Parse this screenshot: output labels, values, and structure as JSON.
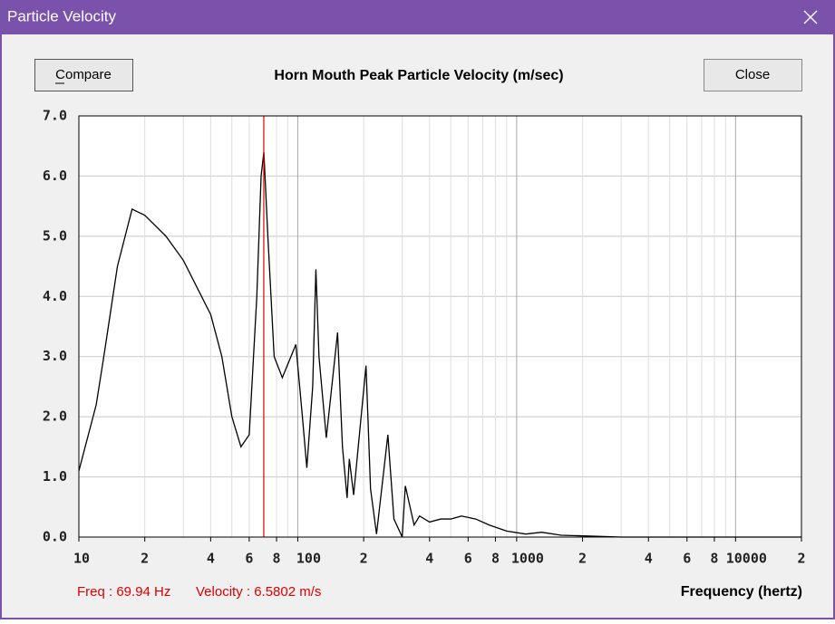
{
  "window": {
    "title": "Particle Velocity",
    "buttons": {
      "compare": "Compare",
      "close": "Close"
    }
  },
  "chart_data": {
    "type": "line",
    "title": "Horn Mouth Peak Particle Velocity (m/sec)",
    "x_label": "Frequency (hertz)",
    "xscale": "log",
    "grid": true,
    "xlim": [
      10,
      20000
    ],
    "ylim": [
      0,
      7
    ],
    "xticks": [
      10,
      {
        "value": 20,
        "label": "2"
      },
      {
        "value": 40,
        "label": "4"
      },
      {
        "value": 60,
        "label": "6"
      },
      {
        "value": 80,
        "label": "8"
      },
      100,
      {
        "value": 200,
        "label": "2"
      },
      {
        "value": 400,
        "label": "4"
      },
      {
        "value": 600,
        "label": "6"
      },
      {
        "value": 800,
        "label": "8"
      },
      1000,
      {
        "value": 2000,
        "label": "2"
      },
      {
        "value": 4000,
        "label": "4"
      },
      {
        "value": 6000,
        "label": "6"
      },
      {
        "value": 8000,
        "label": "8"
      },
      10000,
      {
        "value": 20000,
        "label": "2"
      }
    ],
    "x_minor_ticks": [
      30,
      50,
      70,
      90,
      300,
      500,
      700,
      900,
      3000,
      5000,
      7000,
      9000
    ],
    "yticks": [
      {
        "value": 0,
        "label": "0.0"
      },
      {
        "value": 1,
        "label": "1.0"
      },
      {
        "value": 2,
        "label": "2.0"
      },
      {
        "value": 3,
        "label": "3.0"
      },
      {
        "value": 4,
        "label": "4.0"
      },
      {
        "value": 5,
        "label": "5.0"
      },
      {
        "value": 6,
        "label": "6.0"
      },
      {
        "value": 7,
        "label": "7.0"
      }
    ],
    "x": [
      10,
      12,
      13,
      15,
      17.5,
      20,
      25,
      30,
      40,
      45,
      50,
      55,
      60,
      65,
      68,
      70,
      73,
      78,
      85,
      98,
      105,
      110,
      117,
      121,
      125,
      135,
      152,
      160,
      168,
      172,
      180,
      205,
      215,
      229,
      258,
      275,
      300,
      310,
      340,
      360,
      400,
      450,
      500,
      560,
      650,
      750,
      900,
      1100,
      1300,
      1600,
      2000,
      2500,
      3000,
      5000,
      20000
    ],
    "series": [
      {
        "color": "#000000",
        "values": [
          1.1,
          2.2,
          3.0,
          4.5,
          5.45,
          5.35,
          5.0,
          4.6,
          3.7,
          3.0,
          2.0,
          1.5,
          1.7,
          4.0,
          6.0,
          6.4,
          5.0,
          3.0,
          2.65,
          3.2,
          2.0,
          1.15,
          2.5,
          4.45,
          3.0,
          1.65,
          3.4,
          1.5,
          0.65,
          1.3,
          0.7,
          2.85,
          0.8,
          0.05,
          1.7,
          0.3,
          0.0,
          0.85,
          0.2,
          0.35,
          0.25,
          0.3,
          0.3,
          0.35,
          0.3,
          0.2,
          0.1,
          0.05,
          0.08,
          0.03,
          0.02,
          0.01,
          0,
          0,
          0
        ]
      }
    ],
    "cursor": {
      "x": 69.94,
      "color": "#e00000"
    },
    "readout": {
      "freq": "Freq : 69.94 Hz",
      "velocity": "Velocity : 6.5802 m/s"
    }
  }
}
